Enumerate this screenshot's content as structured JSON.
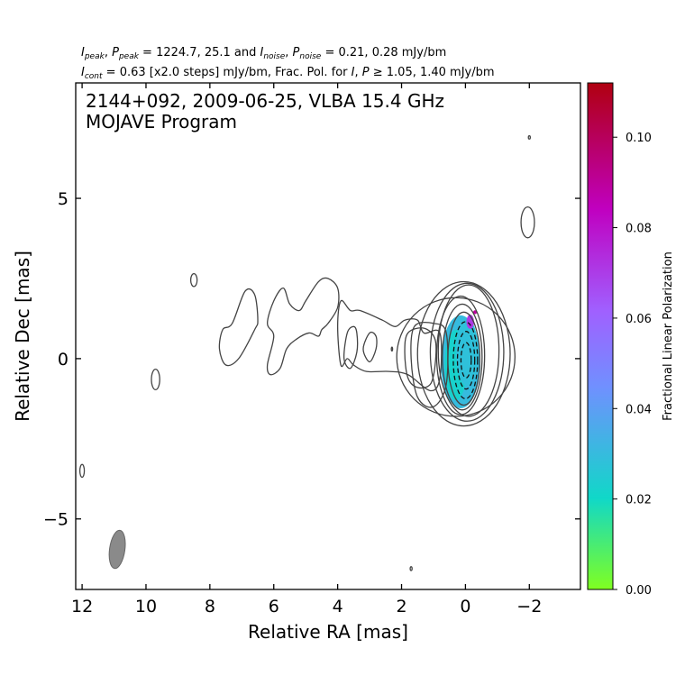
{
  "header": {
    "line1": {
      "I": "I",
      "peak1": "peak",
      "sep1": ", ",
      "P": "P",
      "peak2": "peak",
      "mid": " = 1224.7, 25.1 and ",
      "I2": "I",
      "noise1": "noise",
      "sep2": ", ",
      "P2": "P",
      "noise2": "noise",
      "tail": " = 0.21, 0.28 mJy/bm"
    },
    "line2": {
      "I": "I",
      "cont": "cont",
      "mid": " = 0.63 [x2.0 steps] mJy/bm, Frac. Pol. for ",
      "I2": "I",
      "sep": ", ",
      "P": "P",
      "tail": " ≥  1.05, 1.40 mJy/bm"
    }
  },
  "chart_data": {
    "type": "contour",
    "inset_line1": "2144+092, 2009-06-25, VLBA 15.4 GHz",
    "inset_line2": "MOJAVE Program",
    "xlabel": "Relative RA [mas]",
    "ylabel": "Relative Dec [mas]",
    "xlim": [
      12.2,
      -3.6
    ],
    "ylim": [
      -7.2,
      8.6
    ],
    "x_ticks": [
      12,
      10,
      8,
      6,
      4,
      2,
      0,
      -2
    ],
    "x_tick_labels": [
      "12",
      "10",
      "8",
      "6",
      "4",
      "2",
      "0",
      "−2"
    ],
    "y_ticks": [
      5,
      0,
      -5
    ],
    "y_tick_labels": [
      "5",
      "0",
      "−5"
    ],
    "colorbar": {
      "label": "Fractional Linear Polarization",
      "range": [
        0.0,
        0.112
      ],
      "ticks": [
        0.0,
        0.02,
        0.04,
        0.06,
        0.08,
        0.1
      ],
      "tick_labels": [
        "0.00",
        "0.02",
        "0.04",
        "0.06",
        "0.08",
        "0.10"
      ],
      "colors": [
        "#80ff20",
        "#10d8c8",
        "#7090ff",
        "#c000c0",
        "#b00010"
      ]
    },
    "contour_color": "#444444",
    "core_contours": [
      {
        "cx": -0.1,
        "cy": 0.25,
        "rx": 0.95,
        "ry": 2.05
      },
      {
        "cx": -0.05,
        "cy": 0.2,
        "rx": 1.15,
        "ry": 2.15
      },
      {
        "cx": 0.05,
        "cy": 0.15,
        "rx": 1.45,
        "ry": 2.25
      },
      {
        "cx": 0.3,
        "cy": 0.05,
        "rx": 1.85,
        "ry": 1.85
      },
      {
        "cx": 0.15,
        "cy": 0.1,
        "rx": 0.75,
        "ry": 1.85
      },
      {
        "cx": 0.1,
        "cy": 0.05,
        "rx": 0.62,
        "ry": 1.65
      },
      {
        "cx": 0.05,
        "cy": 0.0,
        "rx": 0.5,
        "ry": 1.45
      },
      {
        "cx": 0.0,
        "cy": -0.05,
        "rx": 0.38,
        "ry": 1.2
      },
      {
        "cx": -0.02,
        "cy": -0.05,
        "rx": 0.27,
        "ry": 0.9
      },
      {
        "cx": -0.02,
        "cy": -0.05,
        "rx": 0.16,
        "ry": 0.55
      }
    ],
    "jet_contours": [
      {
        "points": [
          [
            7.3,
            1.1
          ],
          [
            6.9,
            2.1
          ],
          [
            6.6,
            2.0
          ],
          [
            6.5,
            1.2
          ],
          [
            6.6,
            0.9
          ],
          [
            7.1,
            0.0
          ],
          [
            7.5,
            -0.2
          ],
          [
            7.7,
            0.3
          ],
          [
            7.6,
            0.9
          ]
        ]
      },
      {
        "points": [
          [
            6.0,
            1.8
          ],
          [
            5.7,
            2.2
          ],
          [
            5.5,
            1.7
          ],
          [
            5.2,
            1.5
          ],
          [
            5.0,
            1.8
          ],
          [
            4.6,
            2.4
          ],
          [
            4.3,
            2.5
          ],
          [
            4.0,
            2.2
          ],
          [
            4.0,
            1.6
          ],
          [
            4.3,
            1.1
          ],
          [
            4.5,
            0.9
          ],
          [
            4.6,
            0.7
          ],
          [
            4.9,
            0.8
          ],
          [
            5.3,
            0.6
          ],
          [
            5.6,
            0.3
          ],
          [
            5.8,
            -0.3
          ],
          [
            6.1,
            -0.5
          ],
          [
            6.2,
            -0.2
          ],
          [
            6.0,
            0.7
          ],
          [
            6.2,
            1.1
          ]
        ]
      },
      {
        "points": [
          [
            3.9,
            1.8
          ],
          [
            3.6,
            1.5
          ],
          [
            3.3,
            1.5
          ],
          [
            2.6,
            1.2
          ],
          [
            2.2,
            1.0
          ],
          [
            1.9,
            1.2
          ],
          [
            1.5,
            1.2
          ],
          [
            1.3,
            0.8
          ],
          [
            0.8,
            0.8
          ],
          [
            0.8,
            -0.6
          ],
          [
            1.1,
            -1.0
          ],
          [
            1.8,
            -0.5
          ],
          [
            2.4,
            -0.4
          ],
          [
            3.1,
            -0.4
          ],
          [
            3.5,
            -0.2
          ],
          [
            3.7,
            0.0
          ],
          [
            3.9,
            -0.2
          ],
          [
            4.0,
            1.0
          ]
        ]
      },
      {
        "points": [
          [
            3.7,
            0.8
          ],
          [
            3.8,
            0.0
          ],
          [
            3.6,
            -0.3
          ],
          [
            3.4,
            0.2
          ],
          [
            3.4,
            0.8
          ],
          [
            3.5,
            1.0
          ]
        ]
      },
      {
        "points": [
          [
            3.0,
            0.8
          ],
          [
            3.2,
            0.3
          ],
          [
            3.0,
            -0.1
          ],
          [
            2.8,
            0.3
          ],
          [
            2.8,
            0.7
          ]
        ]
      },
      {
        "points": [
          [
            1.8,
            0.8
          ],
          [
            1.9,
            0.2
          ],
          [
            1.8,
            -0.6
          ],
          [
            1.5,
            -0.9
          ],
          [
            1.1,
            -0.8
          ],
          [
            0.95,
            -0.2
          ],
          [
            0.95,
            0.6
          ],
          [
            1.3,
            0.95
          ]
        ]
      },
      {
        "points": [
          [
            1.6,
            1.0
          ],
          [
            1.7,
            0.0
          ],
          [
            1.5,
            -1.2
          ],
          [
            1.0,
            -1.5
          ],
          [
            0.6,
            -0.8
          ],
          [
            0.6,
            0.8
          ],
          [
            1.0,
            1.1
          ]
        ]
      }
    ],
    "small_contours": [
      {
        "cx": 8.5,
        "cy": 2.45,
        "rx": 0.1,
        "ry": 0.2
      },
      {
        "cx": 9.7,
        "cy": -0.65,
        "rx": 0.13,
        "ry": 0.32
      },
      {
        "cx": 12.0,
        "cy": -3.5,
        "rx": 0.07,
        "ry": 0.2
      },
      {
        "cx": -2.0,
        "cy": 6.9,
        "rx": 0.03,
        "ry": 0.05
      },
      {
        "cx": -1.95,
        "cy": 4.25,
        "rx": 0.21,
        "ry": 0.48
      },
      {
        "cx": 1.7,
        "cy": -6.55,
        "rx": 0.03,
        "ry": 0.06
      },
      {
        "cx": 2.3,
        "cy": 0.3,
        "rx": 0.02,
        "ry": 0.06
      }
    ],
    "fracpol_patches": [
      {
        "cx": 0.15,
        "cy": -0.1,
        "rx": 0.62,
        "ry": 1.45,
        "value": 0.03
      },
      {
        "cx": 0.3,
        "cy": -0.2,
        "rx": 0.35,
        "ry": 1.1,
        "value": 0.022
      },
      {
        "cx": -0.05,
        "cy": 0.2,
        "rx": 0.35,
        "ry": 1.05,
        "value": 0.028
      },
      {
        "cx": -0.15,
        "cy": 1.15,
        "rx": 0.12,
        "ry": 0.22,
        "value": 0.07
      },
      {
        "cx": -0.3,
        "cy": 1.45,
        "rx": 0.06,
        "ry": 0.06,
        "value": 0.09
      }
    ],
    "beam": {
      "cx": 10.9,
      "cy": -5.95,
      "major": 1.2,
      "minor": 0.48
    }
  }
}
